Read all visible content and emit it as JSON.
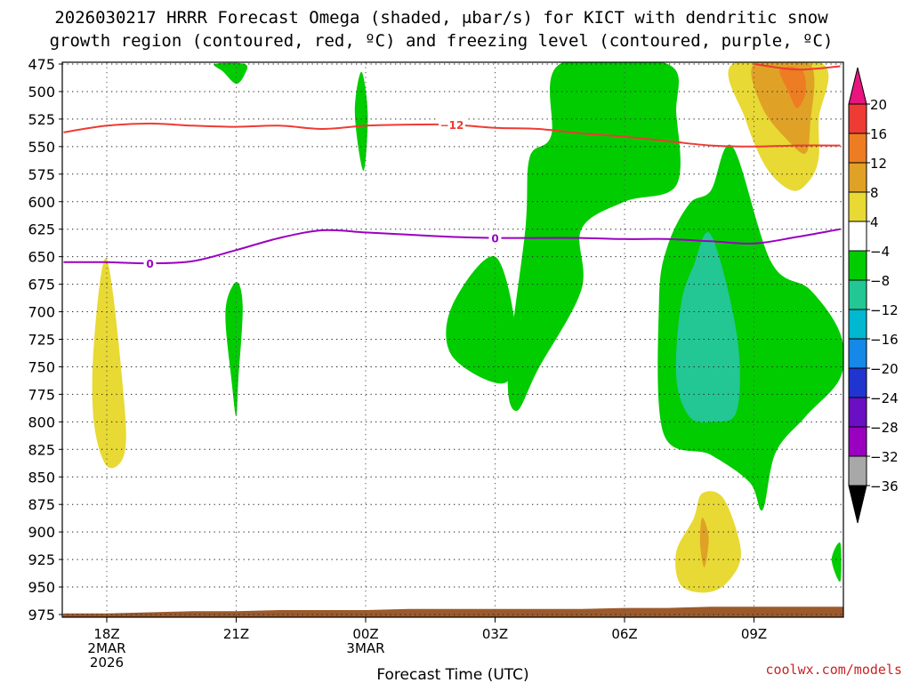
{
  "chart_data": {
    "type": "heatmap",
    "title_lines": [
      "2026030217 HRRR Forecast Omega (shaded, μbar/s) for KICT with dendritic snow",
      "growth region (contoured, red, ºC) and freezing level (contoured, purple, ºC)"
    ],
    "xlabel": "Forecast Time (UTC)",
    "ylabel": "",
    "x_hours": [
      0,
      3,
      6,
      9,
      12,
      15,
      18
    ],
    "x_tick_labels": [
      [
        "18Z",
        "2MAR",
        "2026"
      ],
      [
        "21Z"
      ],
      [
        "00Z",
        "3MAR"
      ],
      [
        "03Z"
      ],
      [
        "06Z"
      ],
      [
        "09Z"
      ]
    ],
    "xlim": [
      -1,
      17
    ],
    "y_ticks": [
      475,
      500,
      525,
      550,
      575,
      600,
      625,
      650,
      675,
      700,
      725,
      750,
      775,
      800,
      825,
      850,
      875,
      900,
      925,
      950,
      975
    ],
    "ylim": [
      475,
      975
    ],
    "colorbar": {
      "levels": [
        20,
        16,
        12,
        8,
        4,
        -4,
        -8,
        -12,
        -16,
        -20,
        -24,
        -28,
        -32,
        -36
      ],
      "colors": [
        "#e8157f",
        "#ee3b33",
        "#ee7c22",
        "#e0a127",
        "#e8d934",
        "#ffffff",
        "#00cc00",
        "#22c794",
        "#00b8d0",
        "#1588e8",
        "#2035d0",
        "#6a0fc2",
        "#9a00c0",
        "#a8a8a8",
        "#000000"
      ]
    },
    "shaded_regions": [
      {
        "name": "omega-green-top-left",
        "value_range": "-8 to -4",
        "color": "#00cc00",
        "points": [
          [
            2.5,
            475
          ],
          [
            3.2,
            475
          ],
          [
            3.2,
            484
          ],
          [
            3.0,
            493
          ],
          [
            2.7,
            482
          ]
        ]
      },
      {
        "name": "omega-green-thin-1",
        "value_range": "-8 to -4",
        "color": "#00cc00",
        "points": [
          [
            5.9,
            482
          ],
          [
            6.05,
            520
          ],
          [
            5.95,
            572
          ],
          [
            5.75,
            520
          ]
        ]
      },
      {
        "name": "omega-green-thin-2",
        "value_range": "-8 to -4",
        "color": "#00cc00",
        "points": [
          [
            3.0,
            673
          ],
          [
            3.15,
            695
          ],
          [
            3.05,
            762
          ],
          [
            3.0,
            795
          ],
          [
            2.9,
            765
          ],
          [
            2.75,
            700
          ]
        ]
      },
      {
        "name": "omega-green-blob-00z",
        "value_range": "-8 to -4",
        "color": "#00cc00",
        "points": [
          [
            9.0,
            650
          ],
          [
            9.5,
            725
          ],
          [
            9.2,
            765
          ],
          [
            8.0,
            740
          ],
          [
            8.0,
            695
          ]
        ]
      },
      {
        "name": "omega-green-main",
        "value_range": "-8 to -4",
        "color": "#00cc00",
        "points": [
          [
            10.5,
            475
          ],
          [
            13.0,
            475
          ],
          [
            13.2,
            520
          ],
          [
            13.2,
            585
          ],
          [
            12.0,
            600
          ],
          [
            11.0,
            625
          ],
          [
            11.0,
            680
          ],
          [
            10.0,
            752
          ],
          [
            9.5,
            790
          ],
          [
            9.3,
            755
          ],
          [
            9.7,
            625
          ],
          [
            9.8,
            560
          ],
          [
            10.3,
            540
          ]
        ]
      },
      {
        "name": "omega-green-right",
        "value_range": "-8 to -4",
        "color": "#00cc00",
        "points": [
          [
            14.5,
            550
          ],
          [
            15.4,
            655
          ],
          [
            16.3,
            680
          ],
          [
            17.0,
            720
          ],
          [
            17.0,
            760
          ],
          [
            16.2,
            795
          ],
          [
            15.5,
            828
          ],
          [
            15.2,
            880
          ],
          [
            14.9,
            855
          ],
          [
            14.0,
            830
          ],
          [
            12.9,
            810
          ],
          [
            12.8,
            690
          ],
          [
            13.0,
            640
          ],
          [
            13.5,
            602
          ],
          [
            14.0,
            590
          ]
        ]
      },
      {
        "name": "omega-green-edge",
        "value_range": "-8 to -4",
        "color": "#00cc00",
        "points": [
          [
            17.0,
            910
          ],
          [
            17.0,
            945
          ],
          [
            16.8,
            925
          ]
        ]
      },
      {
        "name": "omega-teal-core",
        "value_range": "-12 to -8",
        "color": "#22c794",
        "points": [
          [
            14.0,
            630
          ],
          [
            14.6,
            720
          ],
          [
            14.6,
            790
          ],
          [
            14.0,
            800
          ],
          [
            13.5,
            795
          ],
          [
            13.2,
            760
          ],
          [
            13.3,
            695
          ],
          [
            13.6,
            658
          ]
        ]
      },
      {
        "name": "omega-yellow-18z",
        "value_range": "4 to 8",
        "color": "#e8d934",
        "points": [
          [
            0.0,
            652
          ],
          [
            0.4,
            780
          ],
          [
            0.4,
            830
          ],
          [
            0.0,
            840
          ],
          [
            -0.3,
            800
          ],
          [
            -0.3,
            730
          ]
        ]
      },
      {
        "name": "omega-yellow-top-right",
        "value_range": "4 to 8",
        "color": "#e8d934",
        "points": [
          [
            14.5,
            475
          ],
          [
            16.6,
            475
          ],
          [
            16.5,
            525
          ],
          [
            16.5,
            560
          ],
          [
            16.3,
            580
          ],
          [
            15.9,
            590
          ],
          [
            15.3,
            570
          ],
          [
            14.8,
            525
          ]
        ]
      },
      {
        "name": "omega-gold-top-right",
        "value_range": "8 to 12",
        "color": "#e0a127",
        "points": [
          [
            15.0,
            475
          ],
          [
            16.3,
            475
          ],
          [
            16.3,
            530
          ],
          [
            16.2,
            556
          ],
          [
            15.8,
            545
          ],
          [
            15.2,
            515
          ]
        ]
      },
      {
        "name": "omega-orange-top-right",
        "value_range": "12 to 16",
        "color": "#ee7c22",
        "points": [
          [
            15.6,
            480
          ],
          [
            16.1,
            480
          ],
          [
            16.2,
            500
          ],
          [
            16.0,
            515
          ],
          [
            15.8,
            500
          ]
        ]
      },
      {
        "name": "omega-yellow-bottom",
        "value_range": "4 to 8",
        "color": "#e8d934",
        "points": [
          [
            13.8,
            865
          ],
          [
            14.3,
            870
          ],
          [
            14.7,
            918
          ],
          [
            14.4,
            945
          ],
          [
            13.9,
            955
          ],
          [
            13.3,
            948
          ],
          [
            13.2,
            918
          ],
          [
            13.6,
            888
          ]
        ]
      },
      {
        "name": "omega-gold-bottom",
        "value_range": "8 to 12",
        "color": "#e0a127",
        "points": [
          [
            13.8,
            887
          ],
          [
            13.95,
            905
          ],
          [
            13.85,
            932
          ],
          [
            13.75,
            910
          ]
        ]
      }
    ],
    "contours": [
      {
        "name": "dendritic-minus12-line",
        "label": "−12",
        "color": "#ee3b33",
        "x": [
          -1,
          0,
          1,
          2,
          3,
          4,
          5,
          6,
          7,
          8,
          9,
          10,
          11,
          12,
          13,
          14,
          15,
          16,
          17
        ],
        "y": [
          537,
          531,
          529,
          531,
          532,
          531,
          534,
          531,
          530,
          530,
          533,
          534,
          538,
          541,
          545,
          549,
          550,
          549,
          549
        ]
      },
      {
        "name": "freezing-level-line",
        "label": "0",
        "color": "#9a00c0",
        "x": [
          -1,
          0,
          1,
          2,
          3,
          4,
          5,
          6,
          7,
          8,
          9,
          10,
          11,
          12,
          13,
          14,
          15,
          16,
          17
        ],
        "y": [
          655,
          655,
          656,
          654,
          644,
          633,
          626,
          628,
          630,
          632,
          633,
          633,
          633,
          634,
          634,
          636,
          638,
          632,
          625
        ]
      },
      {
        "name": "dendritic-top-segment",
        "label": "",
        "color": "#ee3b33",
        "x": [
          15.0,
          16.0,
          17.0
        ],
        "y": [
          475,
          480,
          477
        ]
      }
    ],
    "terrain_color": "#9c5a2c",
    "terrain_y": [
      974,
      974,
      973,
      972,
      972,
      971,
      971,
      971,
      970,
      970,
      970,
      970,
      970,
      969,
      969,
      968,
      968,
      968,
      968
    ],
    "credit": "coolwx.com/models"
  }
}
